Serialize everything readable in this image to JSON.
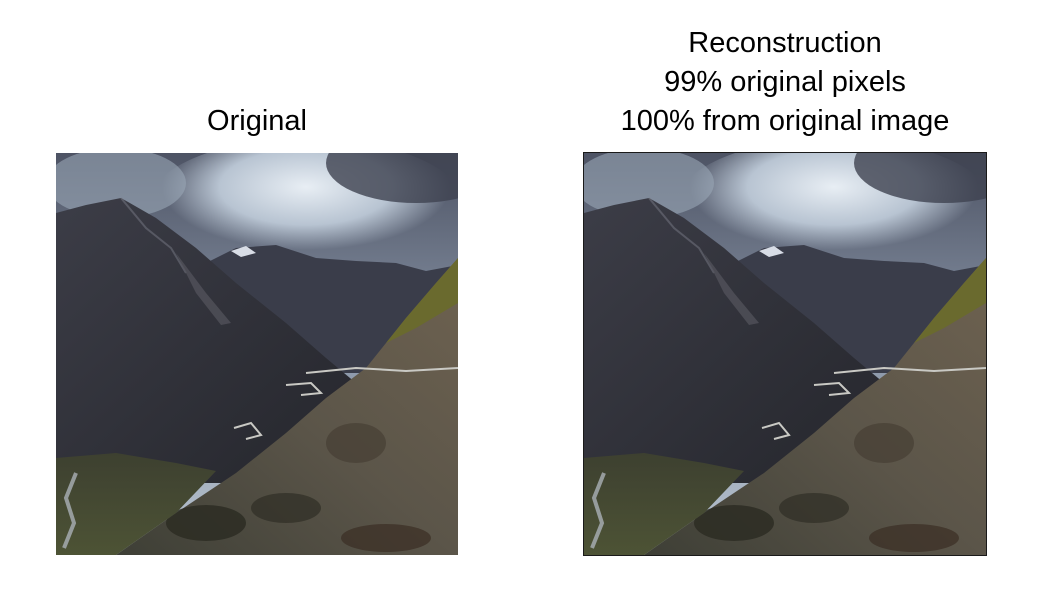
{
  "left": {
    "title": "Original"
  },
  "right": {
    "title_lines": [
      "Reconstruction",
      "99% original pixels",
      "100% from original image"
    ]
  },
  "scene": {
    "sky_top": "#5a6072",
    "sky_cloud": "#c9d3de",
    "mountain_dark": "#2e3039",
    "slope_light": "#6a6660",
    "grass": "#5b5a2e",
    "valley": "#4a5133"
  }
}
